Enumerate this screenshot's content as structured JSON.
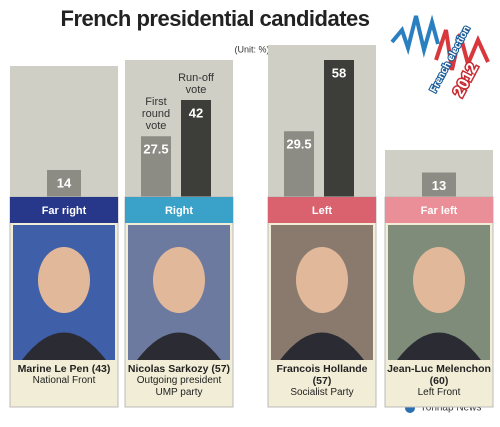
{
  "chart_data": {
    "type": "bar",
    "title": "French presidential candidates",
    "unit": "(Unit: %)",
    "categories": [
      "Far right",
      "Right",
      "Left",
      "Far left"
    ],
    "header_colors": [
      "#27378a",
      "#3aa2c8",
      "#d9626e",
      "#ea8e98"
    ],
    "candidates": [
      {
        "name": "Marine Le Pen (43)",
        "details": [
          "National Front"
        ]
      },
      {
        "name": "Nicolas Sarkozy (57)",
        "details": [
          "Outgoing president",
          "UMP party"
        ]
      },
      {
        "name": "Francois Hollande (57)",
        "details": [
          "Socialist Party"
        ]
      },
      {
        "name": "Jean-Luc Melenchon (60)",
        "details": [
          "Left Front"
        ]
      }
    ],
    "series": [
      {
        "name": "First round vote",
        "color": "#8c8c84",
        "values": [
          14,
          27.5,
          29.5,
          13
        ]
      },
      {
        "name": "Run-off vote",
        "color": "#3d3d39",
        "values": [
          null,
          42,
          58,
          null
        ]
      }
    ],
    "logo": {
      "text": "French election",
      "year": "2012"
    },
    "source": "Yonhap News"
  }
}
